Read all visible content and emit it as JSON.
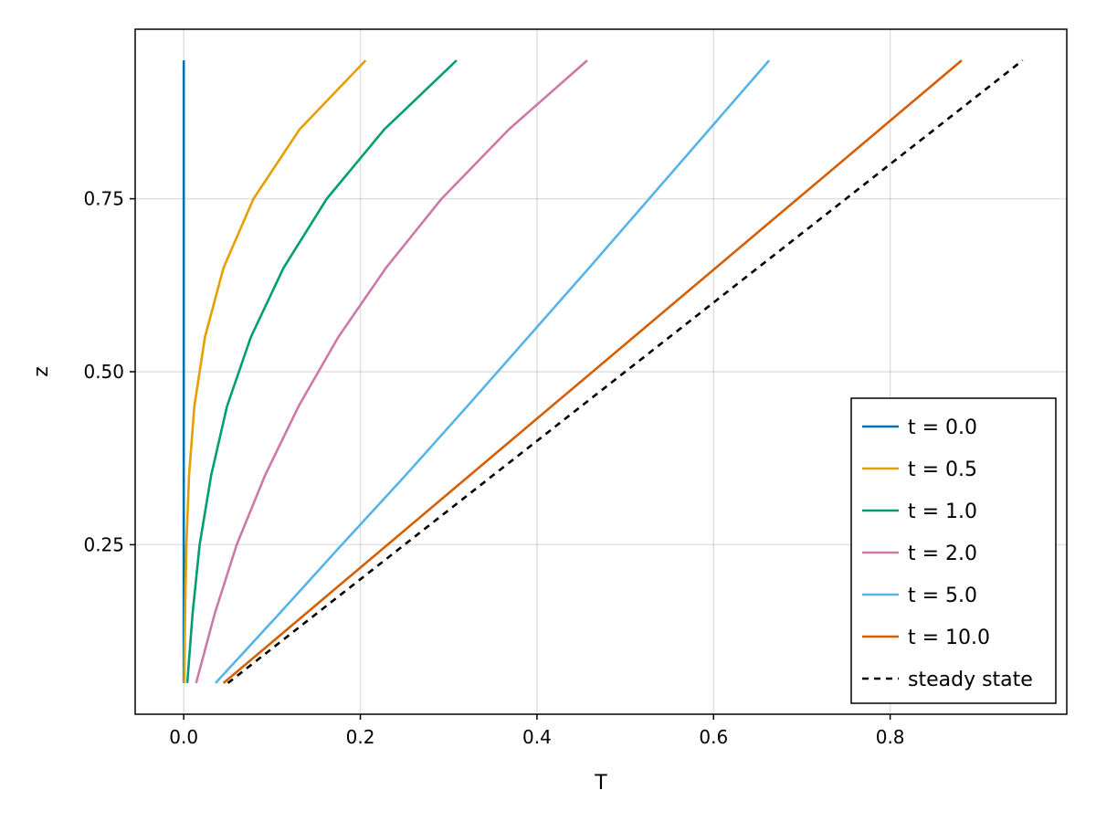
{
  "chart_data": {
    "type": "line",
    "xlabel": "T",
    "ylabel": "z",
    "xlim": [
      -0.055,
      1.0
    ],
    "ylim": [
      0.005,
      0.995
    ],
    "xticks": [
      0.0,
      0.2,
      0.4,
      0.6,
      0.8
    ],
    "xtick_labels": [
      "0.0",
      "0.2",
      "0.4",
      "0.6",
      "0.8"
    ],
    "yticks": [
      0.25,
      0.5,
      0.75
    ],
    "ytick_labels": [
      "0.25",
      "0.50",
      "0.75"
    ],
    "grid": true,
    "legend_position": "bottom-right",
    "series": [
      {
        "name": "t = 0.0",
        "color": "#0072b2",
        "dash": "solid",
        "points": [
          [
            0.0,
            0.05
          ],
          [
            0.0,
            0.15
          ],
          [
            0.0,
            0.25
          ],
          [
            0.0,
            0.35
          ],
          [
            0.0,
            0.45
          ],
          [
            0.0,
            0.55
          ],
          [
            0.0,
            0.65
          ],
          [
            0.0,
            0.75
          ],
          [
            0.0,
            0.85
          ],
          [
            0.0,
            0.95
          ]
        ]
      },
      {
        "name": "t = 0.5",
        "color": "#e69f00",
        "dash": "solid",
        "points": [
          [
            0.0005,
            0.05
          ],
          [
            0.0015,
            0.15
          ],
          [
            0.003,
            0.25
          ],
          [
            0.006,
            0.35
          ],
          [
            0.012,
            0.45
          ],
          [
            0.024,
            0.55
          ],
          [
            0.045,
            0.65
          ],
          [
            0.079,
            0.75
          ],
          [
            0.131,
            0.85
          ],
          [
            0.206,
            0.95
          ]
        ]
      },
      {
        "name": "t = 1.0",
        "color": "#009e73",
        "dash": "solid",
        "points": [
          [
            0.004,
            0.05
          ],
          [
            0.01,
            0.15
          ],
          [
            0.018,
            0.25
          ],
          [
            0.031,
            0.35
          ],
          [
            0.049,
            0.45
          ],
          [
            0.076,
            0.55
          ],
          [
            0.113,
            0.65
          ],
          [
            0.162,
            0.75
          ],
          [
            0.227,
            0.85
          ],
          [
            0.309,
            0.95
          ]
        ]
      },
      {
        "name": "t = 2.0",
        "color": "#cc79a7",
        "dash": "solid",
        "points": [
          [
            0.014,
            0.05
          ],
          [
            0.035,
            0.15
          ],
          [
            0.06,
            0.25
          ],
          [
            0.092,
            0.35
          ],
          [
            0.13,
            0.45
          ],
          [
            0.175,
            0.55
          ],
          [
            0.229,
            0.65
          ],
          [
            0.292,
            0.75
          ],
          [
            0.368,
            0.85
          ],
          [
            0.457,
            0.95
          ]
        ]
      },
      {
        "name": "t = 5.0",
        "color": "#56b4e9",
        "dash": "solid",
        "points": [
          [
            0.036,
            0.05
          ],
          [
            0.108,
            0.15
          ],
          [
            0.179,
            0.25
          ],
          [
            0.251,
            0.35
          ],
          [
            0.321,
            0.45
          ],
          [
            0.39,
            0.55
          ],
          [
            0.459,
            0.65
          ],
          [
            0.527,
            0.75
          ],
          [
            0.595,
            0.85
          ],
          [
            0.663,
            0.95
          ]
        ]
      },
      {
        "name": "t = 10.0",
        "color": "#d55e00",
        "dash": "solid",
        "points": [
          [
            0.045,
            0.05
          ],
          [
            0.881,
            0.95
          ]
        ]
      },
      {
        "name": "steady state",
        "color": "#000000",
        "dash": "dashed",
        "points": [
          [
            0.05,
            0.05
          ],
          [
            0.95,
            0.95
          ]
        ]
      }
    ]
  }
}
